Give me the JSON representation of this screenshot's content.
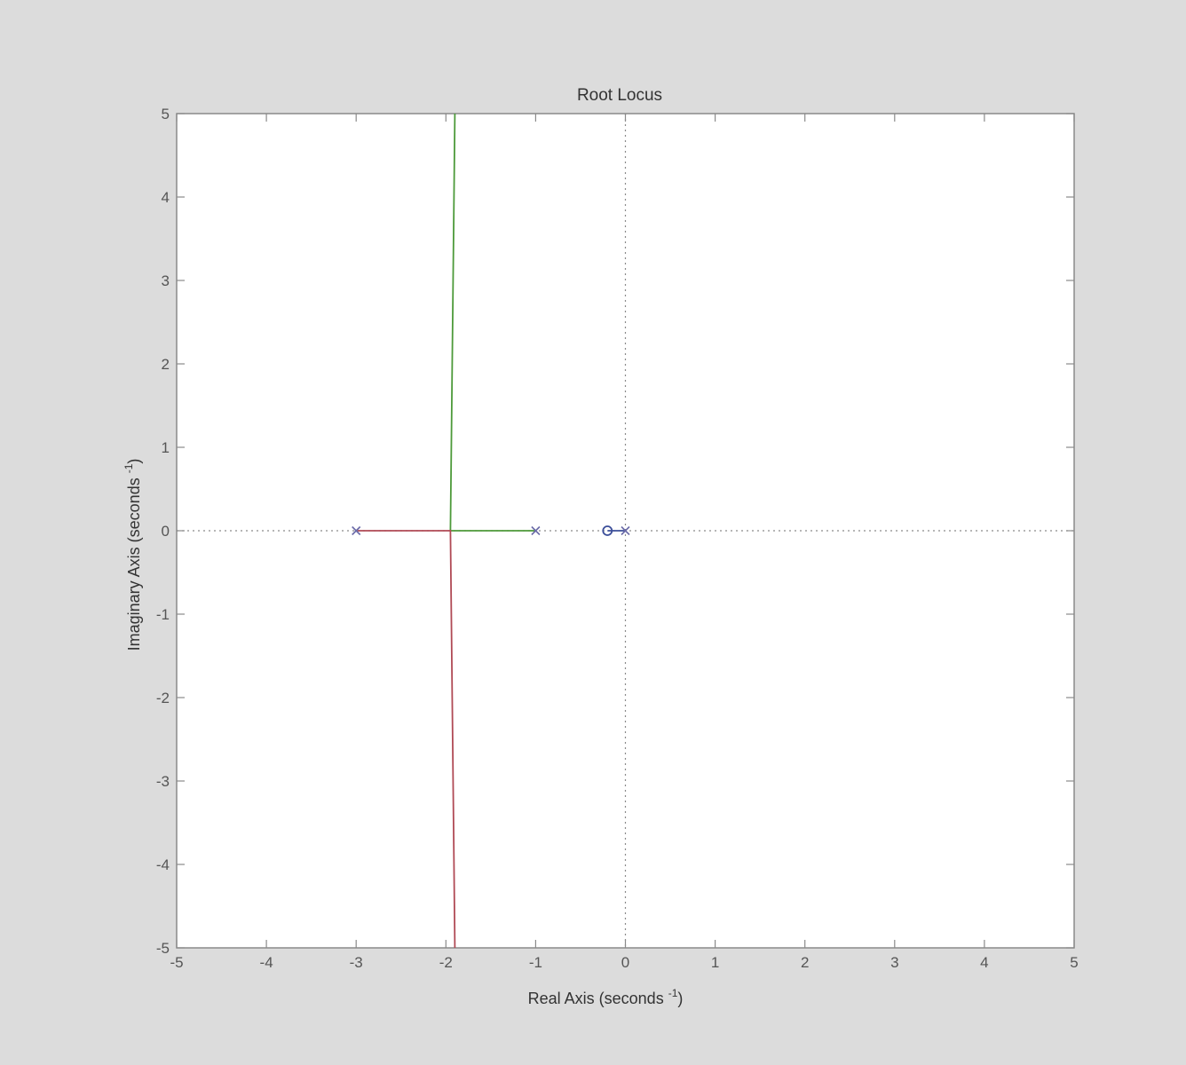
{
  "chart_data": {
    "type": "line",
    "title": "Root Locus",
    "xlabel": "Real Axis (seconds",
    "xlabel_sup": "-1",
    "xlabel_close": ")",
    "ylabel": "Imaginary Axis (seconds",
    "ylabel_sup": "-1",
    "ylabel_close": ")",
    "xlim": [
      -5,
      5
    ],
    "ylim": [
      -5,
      5
    ],
    "x_ticks": [
      -5,
      -4,
      -3,
      -2,
      -1,
      0,
      1,
      2,
      3,
      4,
      5
    ],
    "y_ticks": [
      -5,
      -4,
      -3,
      -2,
      -1,
      0,
      1,
      2,
      3,
      4,
      5
    ],
    "grid": false,
    "series": [
      {
        "color": "#4d9a3a",
        "points": [
          [
            -1,
            0
          ],
          [
            -1.95,
            0
          ],
          [
            -1.94,
            1
          ],
          [
            -1.93,
            2
          ],
          [
            -1.92,
            3
          ],
          [
            -1.91,
            4
          ],
          [
            -1.9,
            5
          ]
        ]
      },
      {
        "color": "#b04a55",
        "points": [
          [
            -3,
            0
          ],
          [
            -1.95,
            0
          ],
          [
            -1.94,
            -1
          ],
          [
            -1.93,
            -2
          ],
          [
            -1.92,
            -3
          ],
          [
            -1.91,
            -4
          ],
          [
            -1.9,
            -5
          ]
        ]
      },
      {
        "color": "#3c4f9a",
        "points": [
          [
            0,
            0
          ],
          [
            -0.2,
            0
          ]
        ]
      }
    ],
    "poles": [
      [
        -3,
        0
      ],
      [
        -1,
        0
      ],
      [
        0,
        0
      ]
    ],
    "zeros": [
      [
        -0.2,
        0
      ]
    ],
    "pole_color": "#6a6aa8",
    "zero_color": "#3c4f9a"
  }
}
